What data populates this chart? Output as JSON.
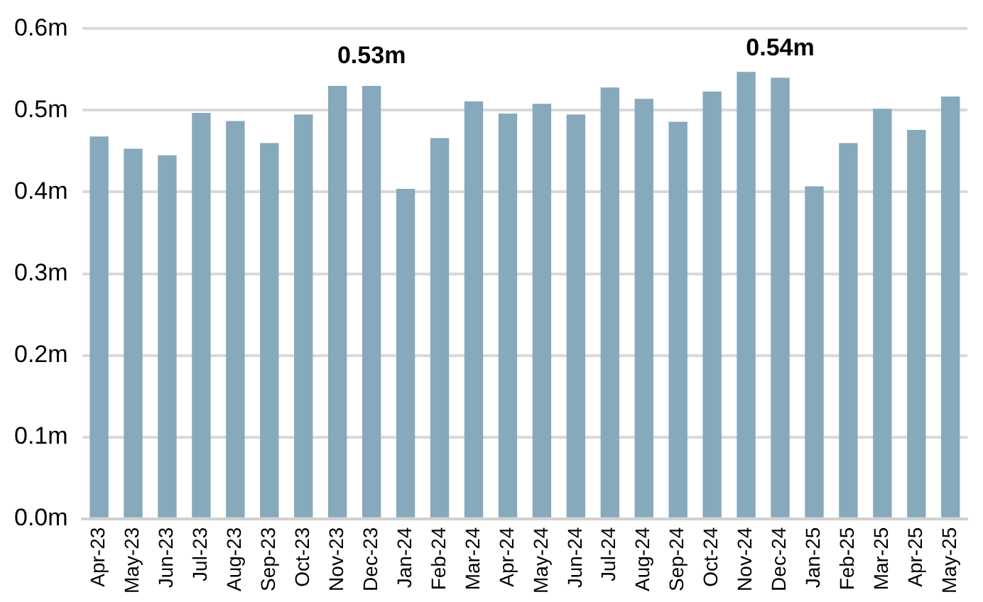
{
  "chart_data": {
    "type": "bar",
    "categories": [
      "Apr-23",
      "May-23",
      "Jun-23",
      "Jul-23",
      "Aug-23",
      "Sep-23",
      "Oct-23",
      "Nov-23",
      "Dec-23",
      "Jan-24",
      "Feb-24",
      "Mar-24",
      "Apr-24",
      "May-24",
      "Jun-24",
      "Jul-24",
      "Aug-24",
      "Sep-24",
      "Oct-24",
      "Nov-24",
      "Dec-24",
      "Jan-25",
      "Feb-25",
      "Mar-25",
      "Apr-25",
      "May-25"
    ],
    "values": [
      0.468,
      0.453,
      0.445,
      0.497,
      0.487,
      0.46,
      0.495,
      0.53,
      0.53,
      0.404,
      0.466,
      0.511,
      0.496,
      0.508,
      0.495,
      0.528,
      0.514,
      0.486,
      0.523,
      0.547,
      0.54,
      0.407,
      0.46,
      0.502,
      0.476,
      0.517
    ],
    "value_labels": [
      null,
      null,
      null,
      null,
      null,
      null,
      null,
      null,
      "0.53m",
      null,
      null,
      null,
      null,
      null,
      null,
      null,
      null,
      null,
      null,
      null,
      "0.54m",
      null,
      null,
      null,
      null,
      null
    ],
    "color": "#86a9bc",
    "ylim": [
      0,
      0.6
    ],
    "yticks": [
      {
        "value": 0,
        "label": "0.0m"
      },
      {
        "value": 0.1,
        "label": "0.1m"
      },
      {
        "value": 0.2,
        "label": "0.2m"
      },
      {
        "value": 0.3,
        "label": "0.3m"
      },
      {
        "value": 0.4,
        "label": "0.4m"
      },
      {
        "value": 0.5,
        "label": "0.5m"
      },
      {
        "value": 0.6,
        "label": "0.6m"
      }
    ],
    "grid": "y"
  }
}
